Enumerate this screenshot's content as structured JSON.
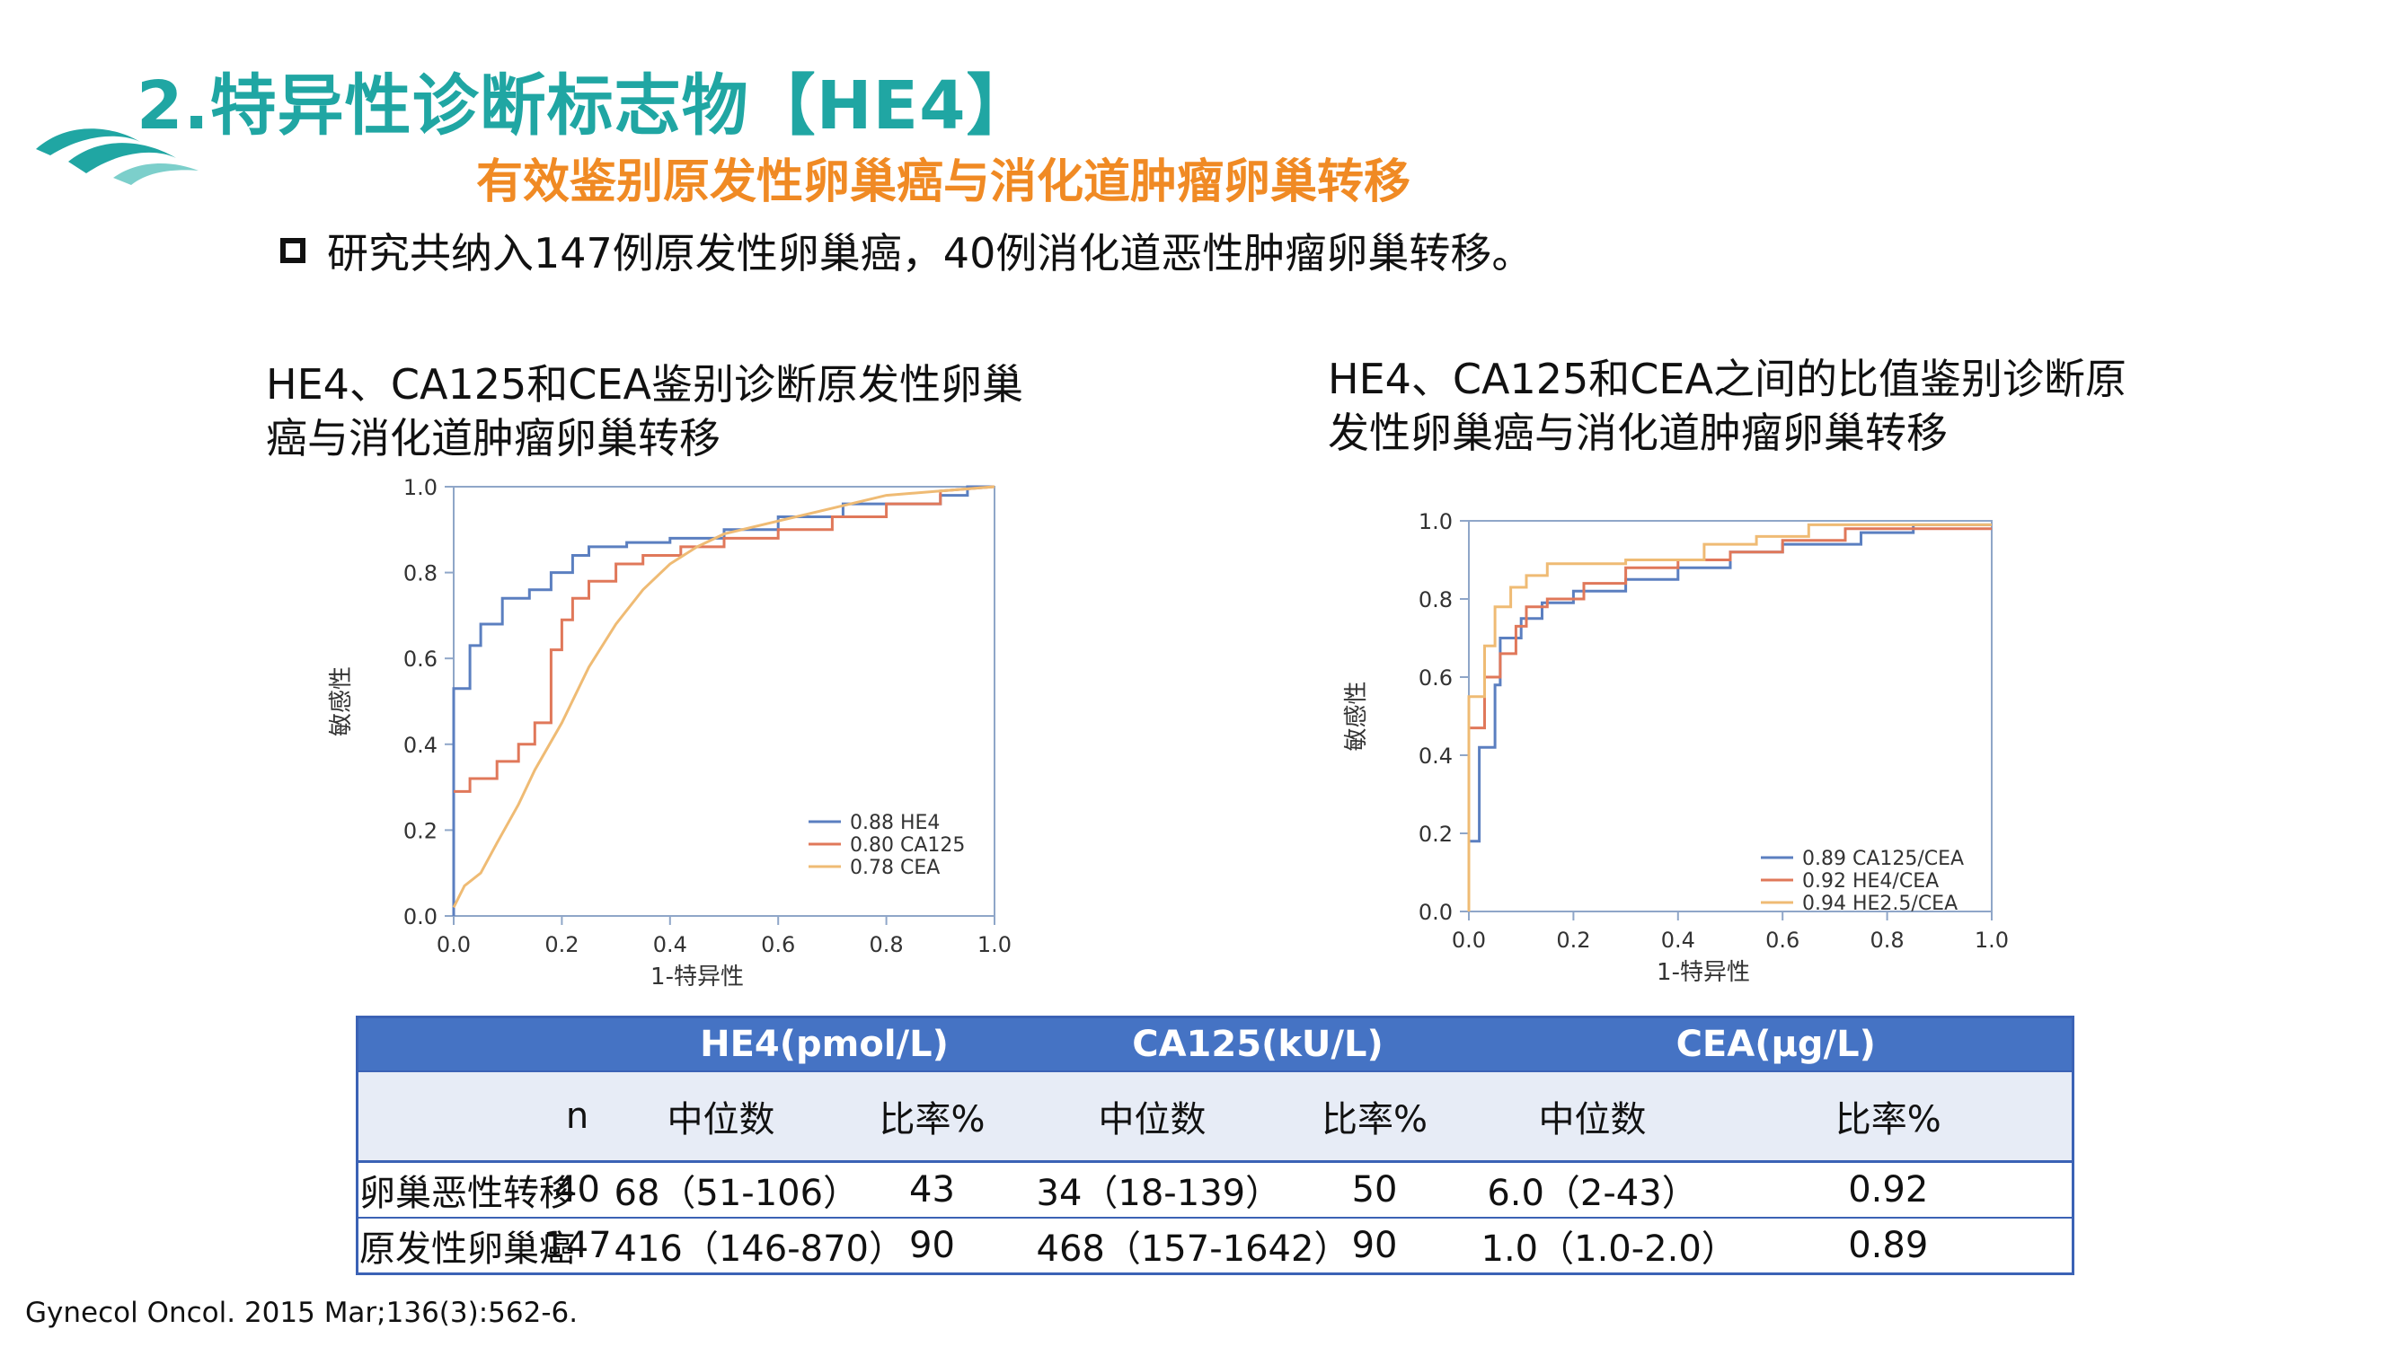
{
  "header": {
    "title": "2.特异性诊断标志物【HE4】",
    "subtitle": "有效鉴别原发性卵巢癌与消化道肿瘤卵巢转移",
    "bullet": "研究共纳入147例原发性卵巢癌，40例消化道恶性肿瘤卵巢转移。"
  },
  "left_title": [
    "HE4、CA125和CEA鉴别诊断原发性卵巢",
    "癌与消化道肿瘤卵巢转移"
  ],
  "right_title": [
    "HE4、CA125和CEA之间的比值鉴别诊断原",
    "发性卵巢癌与消化道肿瘤卵巢转移"
  ],
  "chart_data": [
    {
      "type": "line",
      "xlabel": "1-特异性",
      "ylabel": "敏感性",
      "xlim": [
        0,
        1
      ],
      "ylim": [
        0,
        1
      ],
      "xticks": [
        "0.0",
        "0.2",
        "0.4",
        "0.6",
        "0.8",
        "1.0"
      ],
      "yticks": [
        "0.0",
        "0.2",
        "0.4",
        "0.6",
        "0.8",
        "1.0"
      ],
      "legend_position": "bottom-right",
      "series": [
        {
          "name": "0.88 HE4",
          "color": "#5b7fc0",
          "points": [
            [
              0,
              0
            ],
            [
              0,
              0.53
            ],
            [
              0.03,
              0.53
            ],
            [
              0.03,
              0.63
            ],
            [
              0.05,
              0.63
            ],
            [
              0.05,
              0.68
            ],
            [
              0.09,
              0.68
            ],
            [
              0.09,
              0.74
            ],
            [
              0.14,
              0.74
            ],
            [
              0.14,
              0.76
            ],
            [
              0.18,
              0.76
            ],
            [
              0.18,
              0.8
            ],
            [
              0.22,
              0.8
            ],
            [
              0.22,
              0.84
            ],
            [
              0.25,
              0.84
            ],
            [
              0.25,
              0.86
            ],
            [
              0.32,
              0.86
            ],
            [
              0.32,
              0.87
            ],
            [
              0.4,
              0.87
            ],
            [
              0.4,
              0.88
            ],
            [
              0.5,
              0.88
            ],
            [
              0.5,
              0.9
            ],
            [
              0.6,
              0.9
            ],
            [
              0.6,
              0.93
            ],
            [
              0.72,
              0.93
            ],
            [
              0.72,
              0.96
            ],
            [
              0.9,
              0.96
            ],
            [
              0.9,
              0.98
            ],
            [
              0.95,
              0.98
            ],
            [
              0.95,
              1.0
            ],
            [
              1,
              1.0
            ]
          ]
        },
        {
          "name": "0.80 CA125",
          "color": "#e0785a",
          "points": [
            [
              0,
              0.29
            ],
            [
              0.03,
              0.29
            ],
            [
              0.03,
              0.32
            ],
            [
              0.08,
              0.32
            ],
            [
              0.08,
              0.36
            ],
            [
              0.12,
              0.36
            ],
            [
              0.12,
              0.4
            ],
            [
              0.15,
              0.4
            ],
            [
              0.15,
              0.45
            ],
            [
              0.18,
              0.45
            ],
            [
              0.18,
              0.62
            ],
            [
              0.2,
              0.62
            ],
            [
              0.2,
              0.69
            ],
            [
              0.22,
              0.69
            ],
            [
              0.22,
              0.74
            ],
            [
              0.25,
              0.74
            ],
            [
              0.25,
              0.78
            ],
            [
              0.3,
              0.78
            ],
            [
              0.3,
              0.82
            ],
            [
              0.35,
              0.82
            ],
            [
              0.35,
              0.84
            ],
            [
              0.42,
              0.84
            ],
            [
              0.42,
              0.86
            ],
            [
              0.5,
              0.86
            ],
            [
              0.5,
              0.88
            ],
            [
              0.6,
              0.88
            ],
            [
              0.6,
              0.9
            ],
            [
              0.7,
              0.9
            ],
            [
              0.7,
              0.93
            ],
            [
              0.8,
              0.93
            ],
            [
              0.8,
              0.96
            ],
            [
              0.9,
              0.96
            ],
            [
              0.9,
              0.99
            ],
            [
              1,
              1.0
            ]
          ]
        },
        {
          "name": "0.78 CEA",
          "color": "#efbb74",
          "points": [
            [
              0,
              0.02
            ],
            [
              0.02,
              0.07
            ],
            [
              0.05,
              0.1
            ],
            [
              0.08,
              0.17
            ],
            [
              0.12,
              0.26
            ],
            [
              0.15,
              0.34
            ],
            [
              0.2,
              0.45
            ],
            [
              0.25,
              0.58
            ],
            [
              0.3,
              0.68
            ],
            [
              0.35,
              0.76
            ],
            [
              0.4,
              0.82
            ],
            [
              0.45,
              0.86
            ],
            [
              0.5,
              0.89
            ],
            [
              0.6,
              0.92
            ],
            [
              0.7,
              0.95
            ],
            [
              0.8,
              0.98
            ],
            [
              0.9,
              0.99
            ],
            [
              1,
              1.0
            ]
          ]
        }
      ]
    },
    {
      "type": "line",
      "xlabel": "1-特异性",
      "ylabel": "敏感性",
      "xlim": [
        0,
        1
      ],
      "ylim": [
        0,
        1
      ],
      "xticks": [
        "0.0",
        "0.2",
        "0.4",
        "0.6",
        "0.8",
        "1.0"
      ],
      "yticks": [
        "0.0",
        "0.2",
        "0.4",
        "0.6",
        "0.8",
        "1.0"
      ],
      "legend_position": "bottom-right",
      "series": [
        {
          "name": "0.89 CA125/CEA",
          "color": "#5b7fc0",
          "points": [
            [
              0,
              0
            ],
            [
              0,
              0.18
            ],
            [
              0.02,
              0.18
            ],
            [
              0.02,
              0.42
            ],
            [
              0.05,
              0.42
            ],
            [
              0.05,
              0.58
            ],
            [
              0.06,
              0.58
            ],
            [
              0.06,
              0.7
            ],
            [
              0.1,
              0.7
            ],
            [
              0.1,
              0.75
            ],
            [
              0.14,
              0.75
            ],
            [
              0.14,
              0.79
            ],
            [
              0.2,
              0.79
            ],
            [
              0.2,
              0.82
            ],
            [
              0.3,
              0.82
            ],
            [
              0.3,
              0.85
            ],
            [
              0.4,
              0.85
            ],
            [
              0.4,
              0.88
            ],
            [
              0.5,
              0.88
            ],
            [
              0.5,
              0.92
            ],
            [
              0.6,
              0.92
            ],
            [
              0.6,
              0.94
            ],
            [
              0.75,
              0.94
            ],
            [
              0.75,
              0.97
            ],
            [
              0.85,
              0.97
            ],
            [
              0.85,
              0.99
            ],
            [
              1,
              0.99
            ]
          ]
        },
        {
          "name": "0.92 HE4/CEA",
          "color": "#e0785a",
          "points": [
            [
              0,
              0
            ],
            [
              0,
              0.47
            ],
            [
              0.03,
              0.47
            ],
            [
              0.03,
              0.6
            ],
            [
              0.06,
              0.6
            ],
            [
              0.06,
              0.66
            ],
            [
              0.09,
              0.66
            ],
            [
              0.09,
              0.73
            ],
            [
              0.11,
              0.73
            ],
            [
              0.11,
              0.78
            ],
            [
              0.15,
              0.78
            ],
            [
              0.15,
              0.8
            ],
            [
              0.22,
              0.8
            ],
            [
              0.22,
              0.84
            ],
            [
              0.3,
              0.84
            ],
            [
              0.3,
              0.88
            ],
            [
              0.4,
              0.88
            ],
            [
              0.4,
              0.9
            ],
            [
              0.5,
              0.9
            ],
            [
              0.5,
              0.92
            ],
            [
              0.6,
              0.92
            ],
            [
              0.6,
              0.95
            ],
            [
              0.72,
              0.95
            ],
            [
              0.72,
              0.98
            ],
            [
              1,
              0.98
            ]
          ]
        },
        {
          "name": "0.94 HE2.5/CEA",
          "color": "#efbb74",
          "points": [
            [
              0,
              0
            ],
            [
              0,
              0.55
            ],
            [
              0.03,
              0.55
            ],
            [
              0.03,
              0.68
            ],
            [
              0.05,
              0.68
            ],
            [
              0.05,
              0.78
            ],
            [
              0.08,
              0.78
            ],
            [
              0.08,
              0.83
            ],
            [
              0.11,
              0.83
            ],
            [
              0.11,
              0.86
            ],
            [
              0.15,
              0.86
            ],
            [
              0.15,
              0.89
            ],
            [
              0.3,
              0.89
            ],
            [
              0.3,
              0.9
            ],
            [
              0.45,
              0.9
            ],
            [
              0.45,
              0.94
            ],
            [
              0.55,
              0.94
            ],
            [
              0.55,
              0.96
            ],
            [
              0.65,
              0.96
            ],
            [
              0.65,
              0.99
            ],
            [
              1,
              0.99
            ]
          ]
        }
      ]
    }
  ],
  "table": {
    "groups": [
      "HE4(pmol/L)",
      "CA125(kU/L)",
      "CEA(μg/L)"
    ],
    "subheaders": [
      "",
      "n",
      "中位数",
      "比率%",
      "中位数",
      "比率%",
      "中位数",
      "比率%"
    ],
    "rows": [
      [
        "卵巢恶性转移",
        "40",
        "68（51-106）",
        "43",
        "34（18-139）",
        "50",
        "6.0（2-43）",
        "0.92"
      ],
      [
        "原发性卵巢癌",
        "147",
        "416（146-870）",
        "90",
        "468（157-1642）",
        "90",
        "1.0（1.0-2.0）",
        "0.89"
      ]
    ]
  },
  "citation": "Gynecol Oncol. 2015 Mar;136(3):562-6."
}
